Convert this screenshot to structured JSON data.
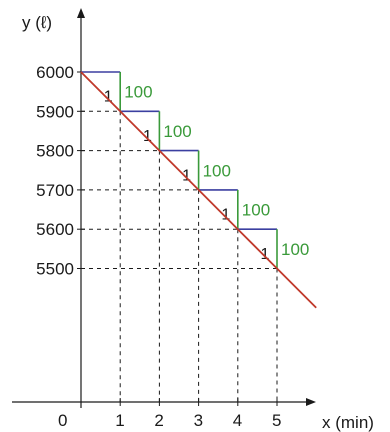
{
  "chart_data": {
    "type": "line",
    "xlabel": "x (min)",
    "ylabel": "y (ℓ)",
    "origin_label": "0",
    "x_ticks": [
      "1",
      "2",
      "3",
      "4",
      "5"
    ],
    "y_ticks": [
      "6000",
      "5900",
      "5800",
      "5700",
      "5600",
      "5500"
    ],
    "x_tick_values": [
      1,
      2,
      3,
      4,
      5
    ],
    "y_tick_values": [
      6000,
      5900,
      5800,
      5700,
      5600,
      5500
    ],
    "series": [
      {
        "x": [
          0,
          1,
          2,
          3,
          4,
          5,
          6
        ],
        "y": [
          6000,
          5900,
          5800,
          5700,
          5600,
          5500,
          5400
        ]
      }
    ],
    "steps": [
      {
        "run": "1",
        "rise": "100"
      },
      {
        "run": "1",
        "rise": "100"
      },
      {
        "run": "1",
        "rise": "100"
      },
      {
        "run": "1",
        "rise": "100"
      },
      {
        "run": "1",
        "rise": "100"
      }
    ],
    "colors": {
      "line": "#c0392b",
      "run": "#3b3fa0",
      "rise": "#3a9a3a",
      "axis": "#1a1a1a"
    }
  }
}
